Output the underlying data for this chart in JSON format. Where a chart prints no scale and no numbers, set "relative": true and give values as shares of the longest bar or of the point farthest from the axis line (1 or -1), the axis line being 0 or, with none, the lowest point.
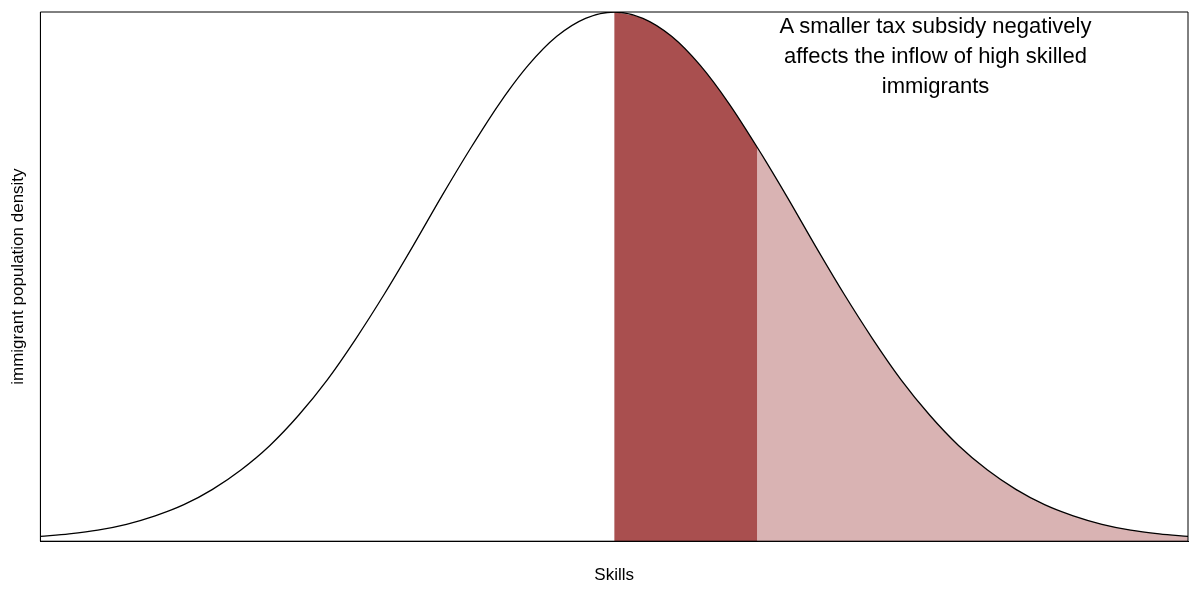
{
  "chart_data": {
    "type": "line",
    "relative": true,
    "xlabel": "Skills",
    "ylabel": "immigrant population density",
    "annotations": [
      "A smaller tax subsidy negatively affects the inflow of high skilled immigrants"
    ],
    "categories": [
      null,
      null,
      null,
      null,
      null,
      null,
      null,
      null,
      null,
      null,
      null,
      null,
      null,
      null,
      null,
      null,
      null,
      null,
      null,
      null,
      null,
      null,
      null,
      null,
      null,
      null,
      null,
      null,
      null,
      null,
      null,
      null,
      null,
      null,
      null,
      null,
      null,
      null,
      null,
      null,
      null
    ],
    "series": [
      {
        "color": "#000000",
        "values": [
          0.009,
          0.014,
          0.021,
          0.032,
          0.048,
          0.069,
          0.098,
          0.135,
          0.181,
          0.238,
          0.305,
          0.383,
          0.468,
          0.559,
          0.653,
          0.743,
          0.827,
          0.899,
          0.954,
          0.988,
          1,
          0.988,
          0.954,
          0.899,
          0.827,
          0.743,
          0.653,
          0.559,
          0.468,
          0.383,
          0.305,
          0.238,
          0.181,
          0.135,
          0.098,
          0.069,
          0.048,
          0.032,
          0.021,
          0.014,
          0.009
        ]
      },
      {
        "type": "area",
        "color": "#a94f4f",
        "values": [
          null,
          null,
          null,
          null,
          null,
          null,
          null,
          null,
          null,
          null,
          null,
          null,
          null,
          null,
          null,
          null,
          null,
          null,
          null,
          null,
          1,
          0.988,
          0.954,
          0.899,
          0.827,
          0.743,
          null,
          null,
          null,
          null,
          null,
          null,
          null,
          null,
          null,
          null,
          null,
          null,
          null,
          null,
          null
        ]
      },
      {
        "type": "area",
        "color": "#d9b3b3",
        "values": [
          null,
          null,
          null,
          null,
          null,
          null,
          null,
          null,
          null,
          null,
          null,
          null,
          null,
          null,
          null,
          null,
          null,
          null,
          null,
          null,
          null,
          null,
          null,
          null,
          null,
          0.743,
          0.653,
          0.559,
          0.468,
          0.383,
          0.305,
          0.238,
          0.181,
          0.135,
          0.098,
          0.069,
          0.048,
          0.032,
          0.021,
          0.014,
          0.009
        ]
      }
    ],
    "grid": false,
    "legend": false,
    "marker": "none"
  }
}
